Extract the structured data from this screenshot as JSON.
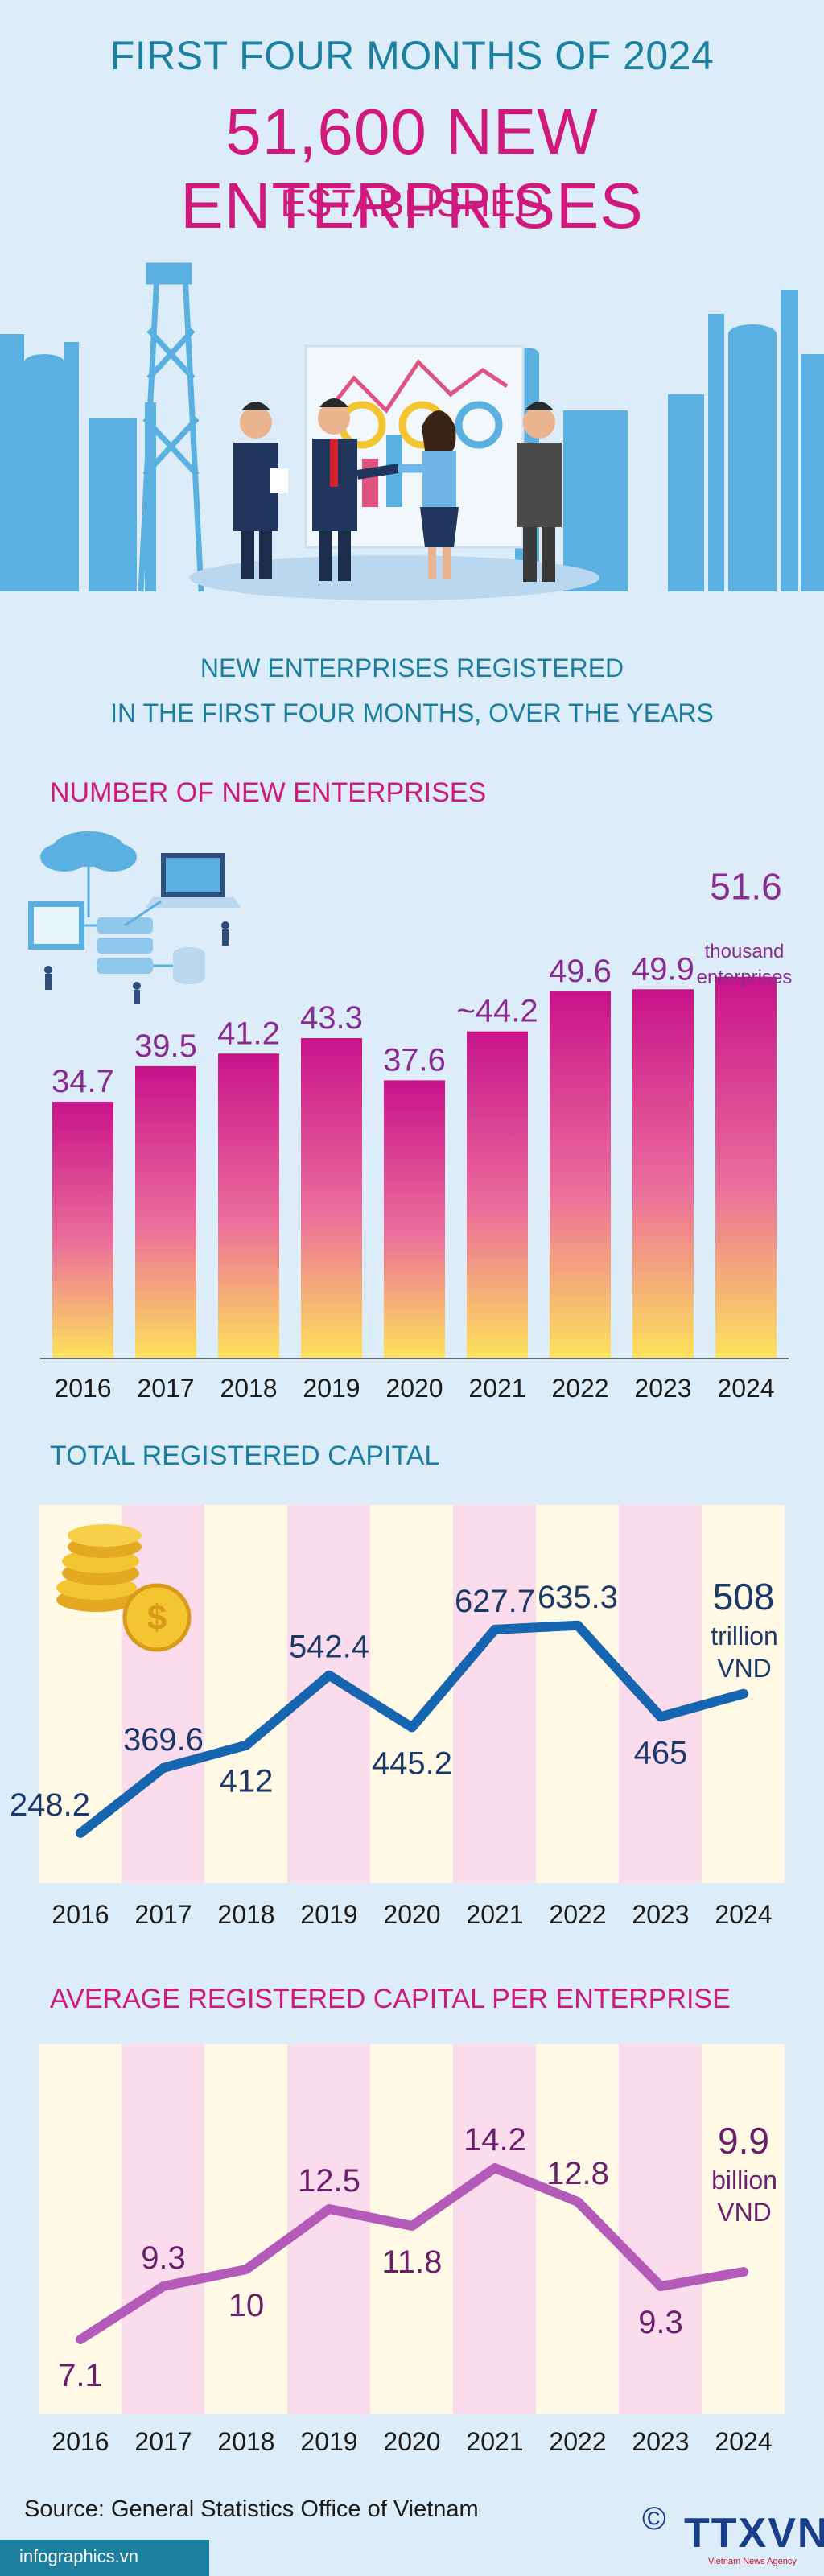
{
  "header": {
    "kicker": "FIRST FOUR MONTHS OF 2024",
    "headline": "51,600 NEW ENTERPRISES",
    "headline_sub": "ESTABLISHED",
    "subtitle_line1": "NEW ENTERPRISES REGISTERED",
    "subtitle_line2": "IN THE FIRST FOUR MONTHS, OVER THE YEARS"
  },
  "colors": {
    "teal": "#1b7fa0",
    "magenta": "#d0187d",
    "line_blue": "#1565b0",
    "line_purple": "#b45ab8",
    "bar_top": "#c8128b",
    "bar_bottom": "#fde25a",
    "stripe_pink": "#fbdcec",
    "stripe_cream": "#fff9e6"
  },
  "chart_data": [
    {
      "type": "bar",
      "title": "NUMBER OF NEW ENTERPRISES",
      "categories": [
        "2016",
        "2017",
        "2018",
        "2019",
        "2020",
        "2021",
        "2022",
        "2023",
        "2024"
      ],
      "values": [
        34.7,
        39.5,
        41.2,
        43.3,
        37.6,
        44.2,
        49.6,
        49.9,
        51.6
      ],
      "value_labels": [
        "34.7",
        "39.5",
        "41.2",
        "43.3",
        "37.6",
        "~44.2",
        "49.6",
        "49.9",
        "51.6"
      ],
      "unit_line1": "thousand",
      "unit_line2": "enterprises",
      "ylim": [
        0,
        52
      ]
    },
    {
      "type": "line",
      "title": "TOTAL REGISTERED CAPITAL",
      "categories": [
        "2016",
        "2017",
        "2018",
        "2019",
        "2020",
        "2021",
        "2022",
        "2023",
        "2024"
      ],
      "values": [
        248.2,
        369.6,
        412,
        542.4,
        445.2,
        627.7,
        635.3,
        465,
        508
      ],
      "value_labels": [
        "248.2",
        "369.6",
        "412",
        "542.4",
        "445.2",
        "627.7",
        "635.3",
        "465",
        "508"
      ],
      "unit_line1": "trillion",
      "unit_line2": "VND",
      "ylim": [
        200,
        680
      ]
    },
    {
      "type": "line",
      "title": "AVERAGE REGISTERED CAPITAL PER ENTERPRISE",
      "categories": [
        "2016",
        "2017",
        "2018",
        "2019",
        "2020",
        "2021",
        "2022",
        "2023",
        "2024"
      ],
      "values": [
        7.1,
        9.3,
        10,
        12.5,
        11.8,
        14.2,
        12.8,
        9.3,
        9.9
      ],
      "value_labels": [
        "7.1",
        "9.3",
        "10",
        "12.5",
        "11.8",
        "14.2",
        "12.8",
        "9.3",
        "9.9"
      ],
      "unit_line1": "billion",
      "unit_line2": "VND",
      "ylim": [
        5,
        15
      ]
    }
  ],
  "footer": {
    "source": "Source: General Statistics Office of Vietnam",
    "site": "infographics.vn",
    "copyright": "©",
    "logo": "TTXVN",
    "logo_sub": "Vietnam News Agency"
  }
}
